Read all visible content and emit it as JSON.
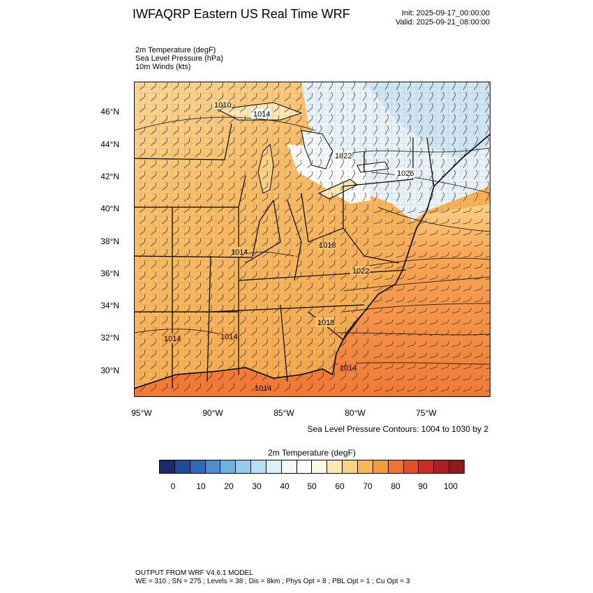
{
  "header": {
    "title": "IWFAQRP Eastern US Real Time WRF",
    "init": "Init: 2025-09-17_00:00:00",
    "valid": "Valid: 2025-09-21_08:00:00"
  },
  "fields": [
    "2m Temperature   (degF)",
    "Sea Level Pressure   (hPa)",
    "10m Winds   (kts)"
  ],
  "axes": {
    "lat_labels": [
      "46°N",
      "44°N",
      "42°N",
      "40°N",
      "38°N",
      "36°N",
      "34°N",
      "32°N",
      "30°N"
    ],
    "lon_labels": [
      "95°W",
      "90°W",
      "85°W",
      "80°W",
      "75°W"
    ]
  },
  "slp_contour_labels": [
    "1010",
    "1014",
    "1022",
    "1026",
    "1018",
    "1014",
    "1022",
    "1018",
    "1014",
    "1014",
    "1014",
    "1014"
  ],
  "slp_note": "Sea Level Pressure Contours: 1004 to 1030 by 2",
  "colorbar": {
    "title": "2m Temperature  (degF)",
    "colors": [
      "#1a2a6c",
      "#234a95",
      "#2f6bb8",
      "#4a8fd0",
      "#6bb1e3",
      "#93cbef",
      "#b8def5",
      "#dbeefa",
      "#f4f9fd",
      "#ffffff",
      "#fff7e0",
      "#fde7b3",
      "#fbd285",
      "#f8b857",
      "#f59a3d",
      "#ef7430",
      "#e44f2a",
      "#cc2a27",
      "#b01e25",
      "#8f1a1c"
    ],
    "labels": [
      "0",
      "10",
      "20",
      "30",
      "40",
      "50",
      "60",
      "70",
      "80",
      "90",
      "100"
    ]
  },
  "footer": {
    "line1": "OUTPUT FROM WRF V4.6.1 MODEL",
    "line2": "WE = 310 ; SN = 275 ; Levels = 38 ; Dis = 8km ; Phys Opt = 8 ; PBL Opt = 1 ; Cu Opt = 3"
  }
}
